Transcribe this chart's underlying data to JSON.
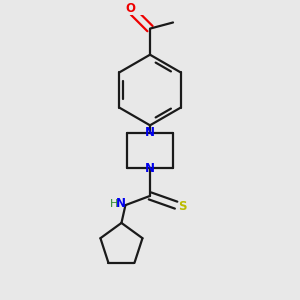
{
  "bg_color": "#e8e8e8",
  "bond_color": "#1a1a1a",
  "N_color": "#0000ee",
  "O_color": "#ee0000",
  "S_color": "#bbbb00",
  "H_color": "#2a8a2a",
  "line_width": 1.6,
  "figsize": [
    3.0,
    3.0
  ],
  "dpi": 100,
  "xlim": [
    0.15,
    0.85
  ],
  "ylim": [
    0.04,
    0.96
  ]
}
